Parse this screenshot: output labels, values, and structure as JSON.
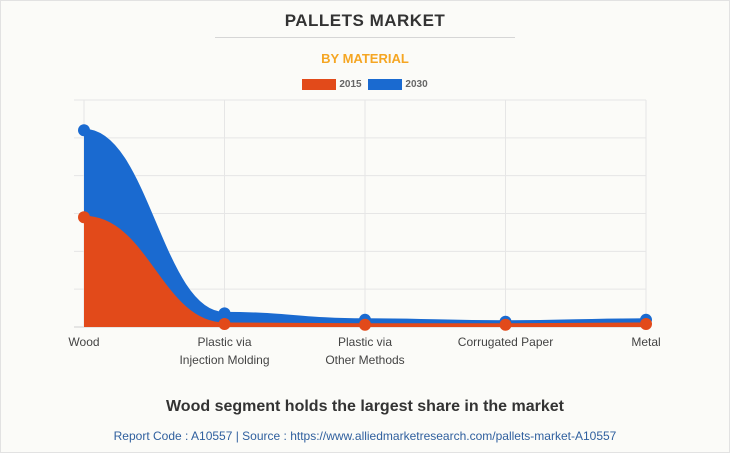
{
  "header": {
    "title": "PALLETS MARKET",
    "subtitle": "BY MATERIAL"
  },
  "legend": [
    {
      "label": "2015",
      "color": "#e24a1a"
    },
    {
      "label": "2030",
      "color": "#1a6ad0"
    }
  ],
  "chart_data": {
    "type": "area",
    "title": "PALLETS MARKET",
    "subtitle": "BY MATERIAL",
    "categories": [
      "Wood",
      "Plastic via Injection Molding",
      "Plastic via Other Methods",
      "Corrugated Paper",
      "Metal"
    ],
    "category_lines": [
      [
        "Wood"
      ],
      [
        "Plastic via",
        "Injection Molding"
      ],
      [
        "Plastic via",
        "Other Methods"
      ],
      [
        "Corrugated Paper"
      ],
      [
        "Metal"
      ]
    ],
    "series": [
      {
        "name": "2015",
        "color": "#e24a1a",
        "values": [
          29,
          0.8,
          0.6,
          0.6,
          0.8
        ]
      },
      {
        "name": "2030",
        "color": "#1a6ad0",
        "values": [
          52,
          3.6,
          1.9,
          1.4,
          1.9
        ]
      }
    ],
    "ylim": [
      0,
      60
    ],
    "grid": true,
    "y_tick_labels_visible": false,
    "legend_position": "top-center"
  },
  "caption": "Wood segment holds the largest share in the market",
  "footer": "Report Code : A10557  |  Source : https://www.alliedmarketresearch.com/pallets-market-A10557"
}
